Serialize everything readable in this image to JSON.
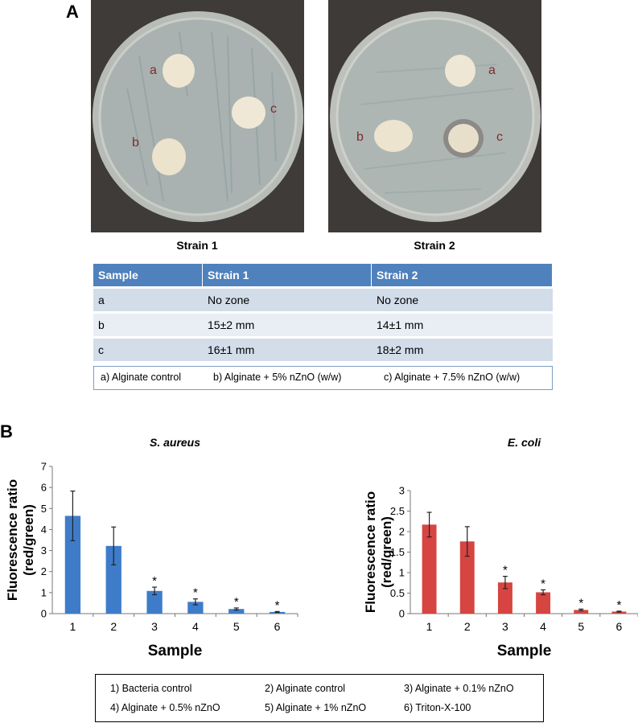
{
  "panel_a": {
    "letter": "A",
    "plate1": {
      "caption": "Strain 1",
      "labels": [
        "a",
        "b",
        "c"
      ]
    },
    "plate2": {
      "caption": "Strain 2",
      "labels": [
        "a",
        "b",
        "c"
      ]
    },
    "table": {
      "headers": [
        "Sample",
        "Strain 1",
        "Strain 2"
      ],
      "rows": [
        [
          "a",
          "No zone",
          "No zone"
        ],
        [
          "b",
          "15±2 mm",
          "14±1 mm"
        ],
        [
          "c",
          "16±1 mm",
          "18±2 mm"
        ]
      ]
    },
    "legend": [
      "a) Alginate control",
      "b) Alginate + 5% nZnO (w/w)",
      "c) Alginate + 7.5% nZnO (w/w)"
    ]
  },
  "panel_b": {
    "letter": "B",
    "legend": [
      "1) Bacteria control",
      "2) Alginate control",
      "3) Alginate + 0.1% nZnO",
      "4) Alginate + 0.5% nZnO",
      "5) Alginate + 1% nZnO",
      "6) Triton-X-100"
    ]
  },
  "colors": {
    "blue_bar": "#3e7cc9",
    "red_bar": "#d64541",
    "table_header": "#4f81bd"
  },
  "chart_data": [
    {
      "type": "bar",
      "title": "S. aureus",
      "xlabel": "Sample",
      "ylabel": "Fluorescence ratio (red/green)",
      "categories": [
        "1",
        "2",
        "3",
        "4",
        "5",
        "6"
      ],
      "values": [
        4.65,
        3.22,
        1.08,
        0.56,
        0.22,
        0.08
      ],
      "errors": [
        1.18,
        0.9,
        0.18,
        0.14,
        0.05,
        0.02
      ],
      "significance": [
        "",
        "",
        "*",
        "*",
        "*",
        "*"
      ],
      "ylim": [
        0,
        7
      ],
      "yticks": [
        "0",
        "1",
        "2",
        "3",
        "4",
        "5",
        "6",
        "7"
      ],
      "color": "#3e7cc9",
      "grid": false
    },
    {
      "type": "bar",
      "title": "E. coli",
      "xlabel": "Sample",
      "ylabel": "Fluorescence ratio (red/green)",
      "categories": [
        "1",
        "2",
        "3",
        "4",
        "5",
        "6"
      ],
      "values": [
        2.17,
        1.76,
        0.76,
        0.52,
        0.09,
        0.05
      ],
      "errors": [
        0.3,
        0.36,
        0.15,
        0.06,
        0.02,
        0.01
      ],
      "significance": [
        "",
        "",
        "*",
        "*",
        "*",
        "*"
      ],
      "ylim": [
        0,
        3
      ],
      "yticks": [
        "0",
        "0.5",
        "1",
        "1.5",
        "2",
        "2.5",
        "3"
      ],
      "color": "#d64541",
      "grid": false
    }
  ]
}
